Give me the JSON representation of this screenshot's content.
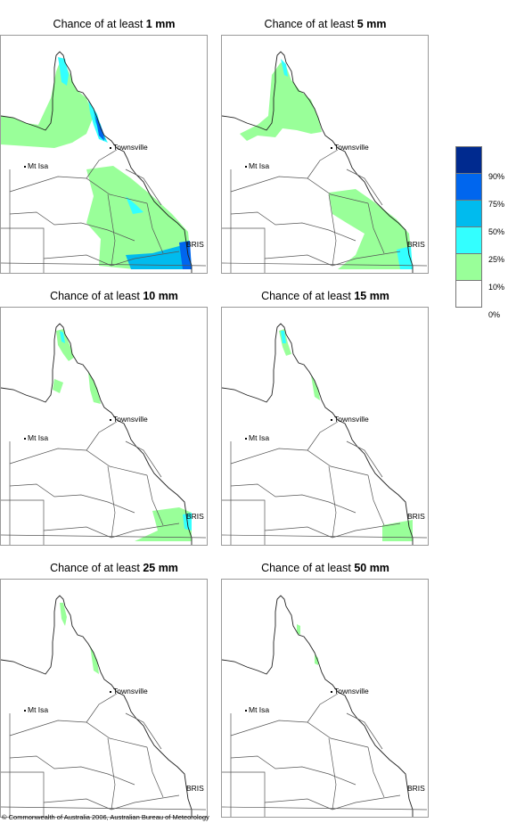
{
  "panels": [
    {
      "prefix": "Chance of at least ",
      "amount": "1 mm"
    },
    {
      "prefix": "Chance of at least ",
      "amount": "5 mm"
    },
    {
      "prefix": "Chance of at least ",
      "amount": "10 mm"
    },
    {
      "prefix": "Chance of at least ",
      "amount": "15 mm"
    },
    {
      "prefix": "Chance of at least ",
      "amount": "25 mm"
    },
    {
      "prefix": "Chance of at least ",
      "amount": "50 mm"
    }
  ],
  "places": {
    "townsville": "Townsville",
    "mt_isa": "Mt Isa",
    "brisbane": "BRIS"
  },
  "legend": {
    "labels": [
      "90%",
      "75%",
      "50%",
      "25%",
      "10%",
      "0%"
    ],
    "colors": [
      "#002a8f",
      "#0066ee",
      "#00bbee",
      "#33ffff",
      "#99ff99",
      "#ffffff"
    ]
  },
  "footer": "© Commonwealth of Australia 2006, Australian Bureau of Meteorology"
}
